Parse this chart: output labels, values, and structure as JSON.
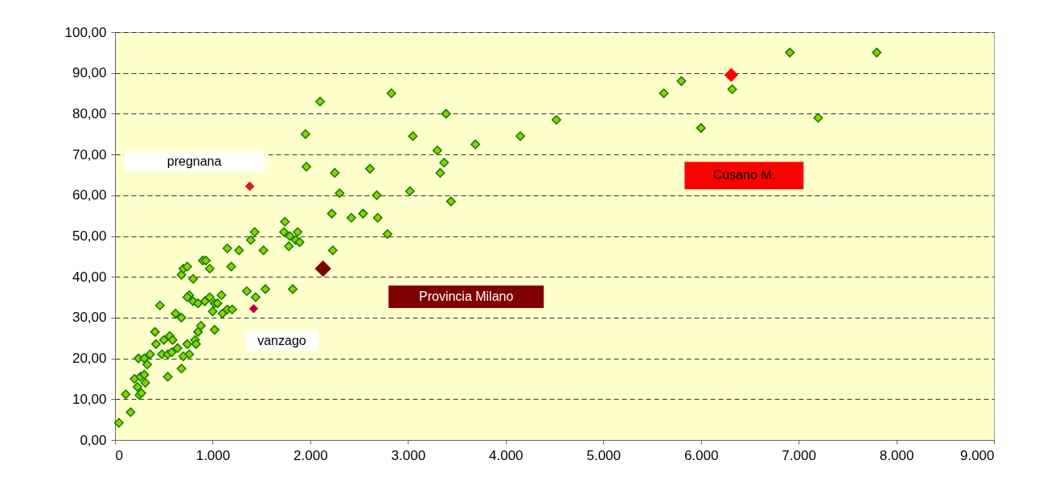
{
  "chart_data": {
    "type": "scatter",
    "marker": "diamond",
    "grid": "y",
    "xlim": [
      0,
      9000
    ],
    "ylim": [
      0,
      100
    ],
    "xticks": [
      0,
      {
        "value": 1000,
        "label": "1.000"
      },
      {
        "value": 2000,
        "label": "2.000"
      },
      {
        "value": 3000,
        "label": "3.000"
      },
      {
        "value": 4000,
        "label": "4.000"
      },
      {
        "value": 5000,
        "label": "5.000"
      },
      {
        "value": 6000,
        "label": "6.000"
      },
      {
        "value": 7000,
        "label": "7.000"
      },
      {
        "value": 8000,
        "label": "8.000"
      },
      {
        "value": 9000,
        "label": "9.000"
      }
    ],
    "yticks": [
      {
        "value": 0,
        "label": "0,00"
      },
      {
        "value": 10,
        "label": "10,00"
      },
      {
        "value": 20,
        "label": "20,00"
      },
      {
        "value": 30,
        "label": "30,00"
      },
      {
        "value": 40,
        "label": "40,00"
      },
      {
        "value": 50,
        "label": "50,00"
      },
      {
        "value": 60,
        "label": "60,00"
      },
      {
        "value": 70,
        "label": "70,00"
      },
      {
        "value": 80,
        "label": "80,00"
      },
      {
        "value": 90,
        "label": "90,00"
      },
      {
        "value": 100,
        "label": "100,00"
      }
    ],
    "series": [
      {
        "color": "#99cc00",
        "x": [
          40,
          160,
          110,
          250,
          270,
          230,
          310,
          200,
          260,
          300,
          330,
          240,
          300,
          360,
          480,
          540,
          580,
          640,
          760,
          540,
          680,
          500,
          560,
          590,
          420,
          410,
          700,
          820,
          830,
          740,
          850,
          880,
          1020,
          680,
          460,
          620,
          760,
          740,
          800,
          850,
          920,
          970,
          1020,
          1050,
          1090,
          1100,
          1150,
          1200,
          1000,
          680,
          700,
          740,
          800,
          900,
          930,
          970,
          1150,
          1190,
          1270,
          1350,
          1390,
          1430,
          1440,
          1520,
          1540,
          1740,
          1730,
          1780,
          1790,
          1820,
          1850,
          1870,
          1890,
          1950,
          1960,
          2100,
          2220,
          2230,
          2250,
          2300,
          2420,
          2540,
          2610,
          2680,
          2690,
          2790,
          2830,
          3020,
          3050,
          3300,
          3330,
          3370,
          3390,
          3440,
          3690,
          4150,
          4520,
          5620,
          5800,
          6000,
          6320,
          6910,
          7200,
          7800
        ],
        "values": [
          4.2,
          6.8,
          11.2,
          11,
          11.5,
          13,
          14,
          15,
          15.5,
          16,
          18.5,
          20,
          20,
          21,
          21,
          21,
          21.5,
          22.5,
          21,
          15.5,
          17.5,
          24.5,
          25.5,
          24.5,
          23.5,
          26.5,
          20.5,
          24.5,
          23.5,
          23.5,
          26.5,
          28,
          27,
          30,
          33,
          31,
          35.5,
          35,
          34,
          33.5,
          34,
          35,
          33.5,
          33.5,
          35.5,
          31,
          32,
          32,
          31.5,
          40.5,
          42,
          42.5,
          39.5,
          44,
          44,
          42,
          47,
          42.5,
          46.5,
          36.5,
          49,
          51,
          35,
          46.5,
          37,
          53.5,
          51,
          47.5,
          50,
          37,
          49,
          51,
          48.5,
          75,
          67,
          83,
          55.5,
          46.5,
          65.5,
          60.5,
          54.5,
          55.5,
          66.5,
          60,
          54.5,
          50.5,
          85,
          61,
          74.5,
          71,
          65.5,
          68,
          80,
          58.5,
          72.5,
          74.5,
          78.5,
          85,
          88,
          76.5,
          86,
          95,
          79,
          95
        ]
      },
      {
        "name": "pregnana",
        "color": "#993366",
        "x": [
          1380
        ],
        "values": [
          62.2
        ]
      },
      {
        "name": "vanzago",
        "color": "#800080",
        "x": [
          1420
        ],
        "values": [
          32.2
        ]
      },
      {
        "name": "Provincia Milano",
        "color": "#800000",
        "x": [
          2130
        ],
        "values": [
          42
        ]
      },
      {
        "name": "Cusano M.",
        "color": "#ff0000",
        "x": [
          6310
        ],
        "values": [
          89.5
        ]
      }
    ]
  }
}
